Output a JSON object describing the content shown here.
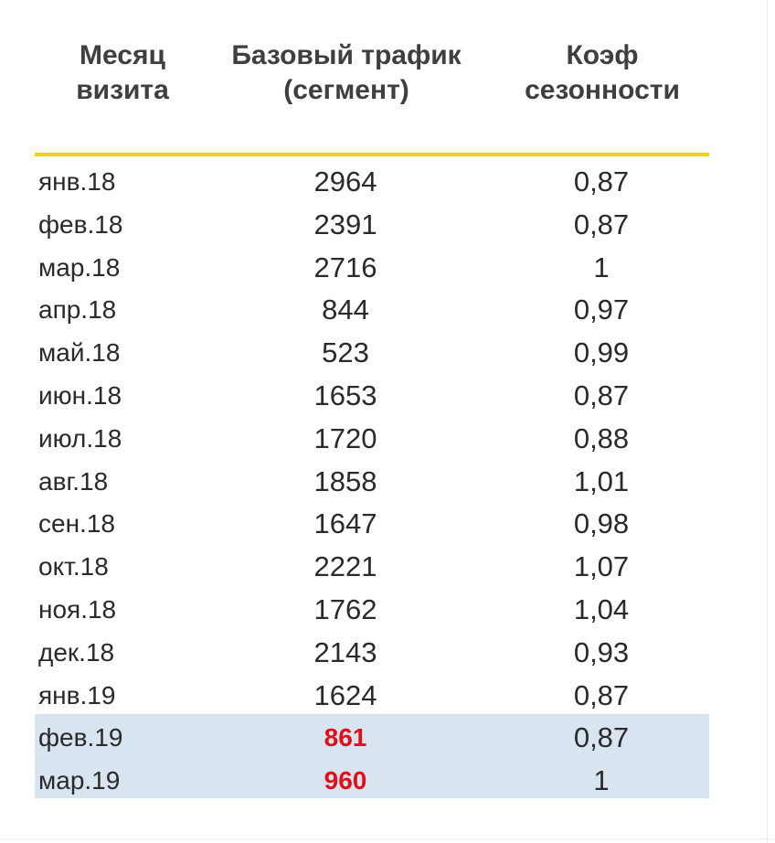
{
  "table": {
    "headers": {
      "month": [
        "Месяц",
        "визита"
      ],
      "traffic": [
        "Базовый трафик",
        "(сегмент)"
      ],
      "coef": [
        "Коэф",
        "сезонности"
      ]
    },
    "accent_color": "#e0101a",
    "rule_color": "#f1d416",
    "highlight_color": "#d8e4ef",
    "rows": [
      {
        "month": "янв.18",
        "traffic": "2964",
        "coef": "0,87"
      },
      {
        "month": "фев.18",
        "traffic": "2391",
        "coef": "0,87"
      },
      {
        "month": "мар.18",
        "traffic": "2716",
        "coef": "1"
      },
      {
        "month": "апр.18",
        "traffic": "844",
        "coef": "0,97"
      },
      {
        "month": "май.18",
        "traffic": "523",
        "coef": "0,99"
      },
      {
        "month": "июн.18",
        "traffic": "1653",
        "coef": "0,87"
      },
      {
        "month": "июл.18",
        "traffic": "1720",
        "coef": "0,88"
      },
      {
        "month": "авг.18",
        "traffic": "1858",
        "coef": "1,01"
      },
      {
        "month": "сен.18",
        "traffic": "1647",
        "coef": "0,98"
      },
      {
        "month": "окт.18",
        "traffic": "2221",
        "coef": "1,07"
      },
      {
        "month": "ноя.18",
        "traffic": "1762",
        "coef": "1,04"
      },
      {
        "month": "дек.18",
        "traffic": "2143",
        "coef": "0,93"
      },
      {
        "month": "янв.19",
        "traffic": "1624",
        "coef": "0,87"
      },
      {
        "month": "фев.19",
        "traffic": "861",
        "coef": "0,87",
        "highlighted": true
      },
      {
        "month": "мар.19",
        "traffic": "960",
        "coef": "1",
        "highlighted": true
      }
    ]
  }
}
